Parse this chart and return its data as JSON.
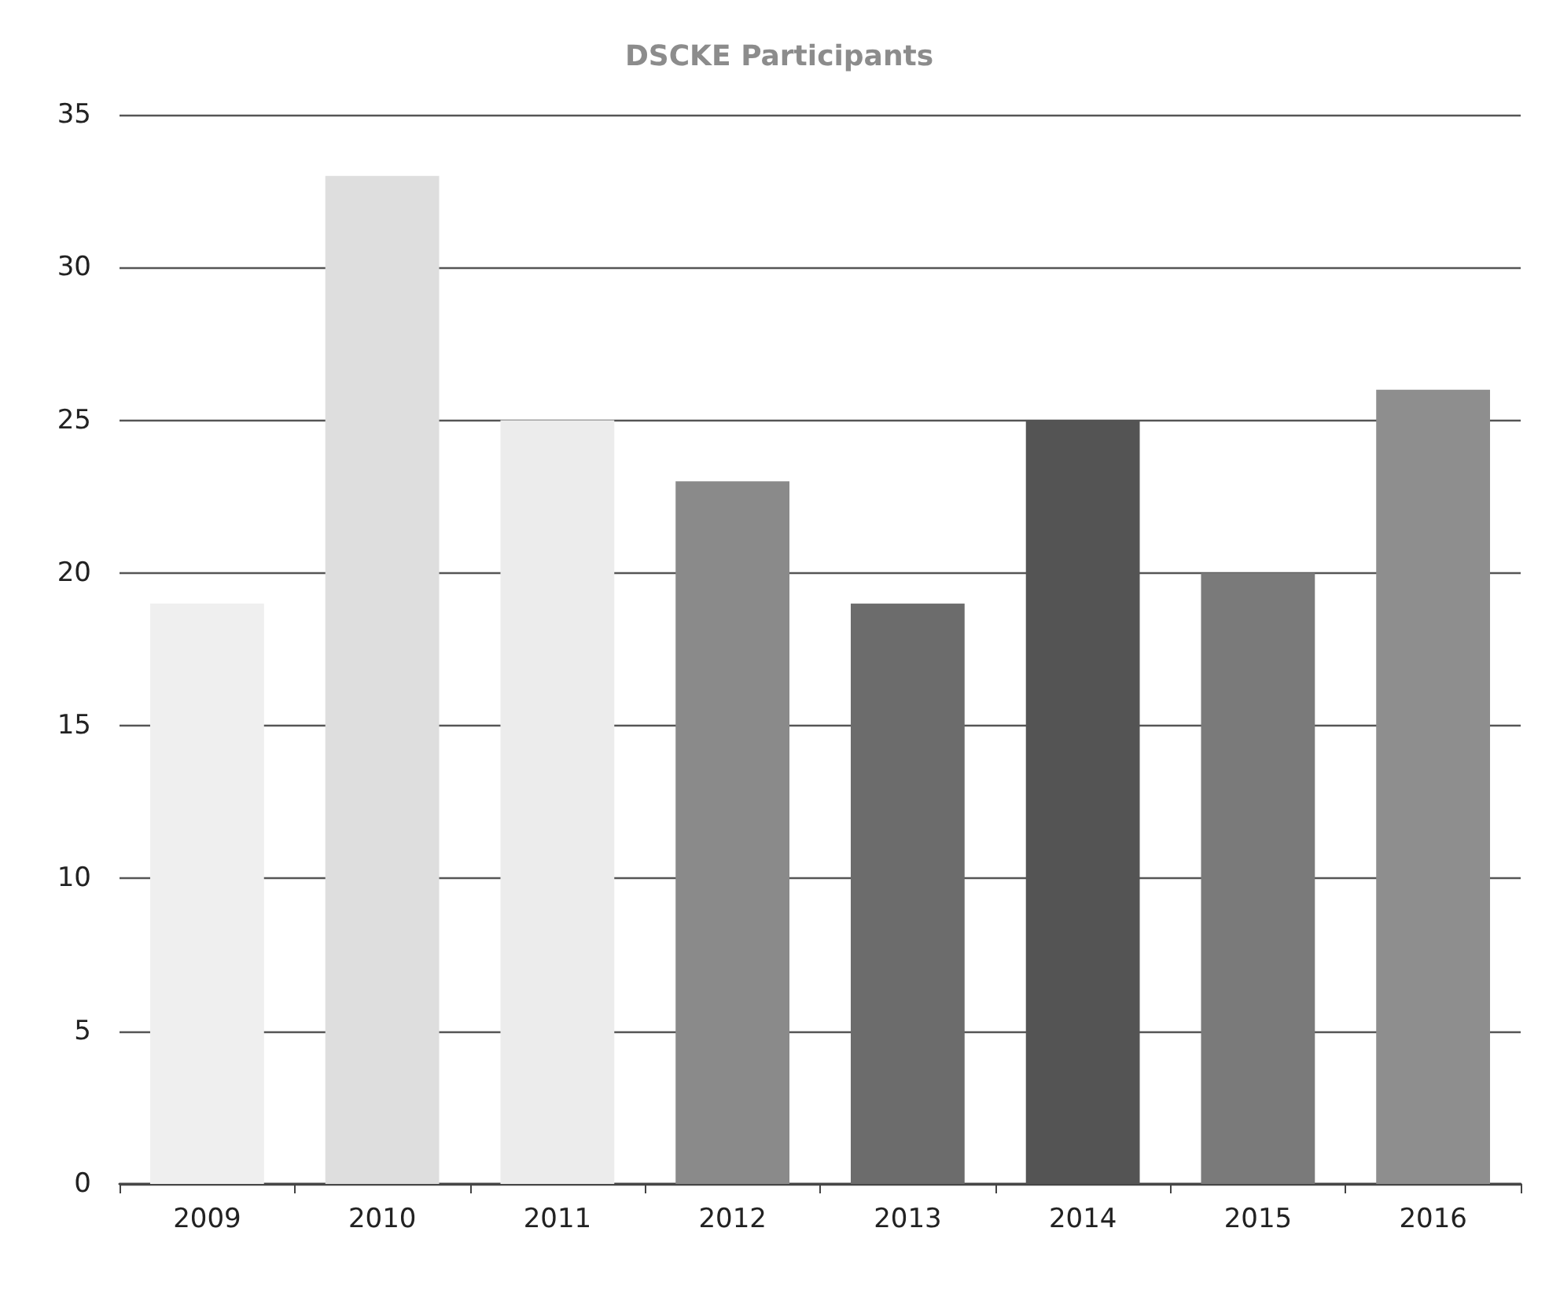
{
  "chart_data": {
    "type": "bar",
    "title": "DSCKE Participants",
    "categories": [
      "2009",
      "2010",
      "2011",
      "2012",
      "2013",
      "2014",
      "2015",
      "2016"
    ],
    "values": [
      19,
      33,
      25,
      23,
      19,
      25,
      20,
      26
    ],
    "colors": [
      "#efefef",
      "#dedede",
      "#ececec",
      "#8a8a8a",
      "#6c6c6c",
      "#545454",
      "#7a7a7a",
      "#8e8e8e"
    ],
    "ylim": [
      0,
      35
    ],
    "yticks": [
      0,
      5,
      10,
      15,
      20,
      25,
      30,
      35
    ],
    "grid": "y"
  }
}
